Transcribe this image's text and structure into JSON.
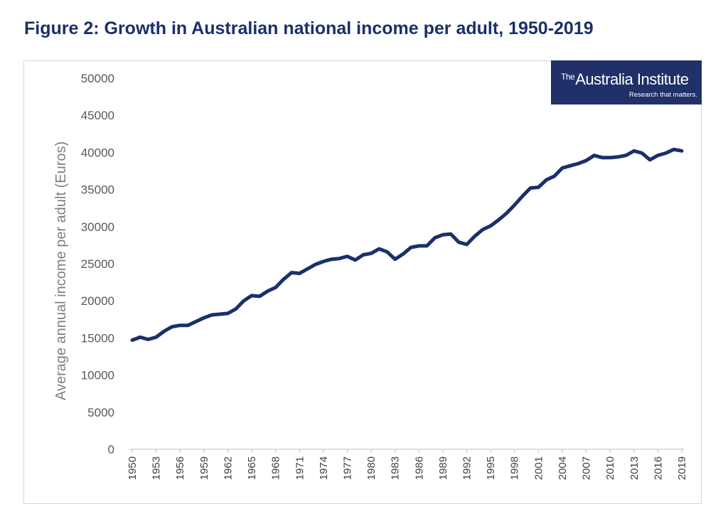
{
  "figure": {
    "title": "Figure 2: Growth in Australian national income per adult, 1950-2019"
  },
  "logo": {
    "the": "The",
    "name": "Australia Institute",
    "tagline": "Research that matters.",
    "background": "#1f3168"
  },
  "chart_data": {
    "type": "line",
    "title": "Figure 2: Growth in Australian national income per adult, 1950-2019",
    "ylabel": "Average annual income per adult (Euros)",
    "xlabel": "",
    "ylim": [
      0,
      50000
    ],
    "y_ticks": [
      0,
      5000,
      10000,
      15000,
      20000,
      25000,
      30000,
      35000,
      40000,
      45000,
      50000
    ],
    "x_tick_labels": [
      "1950",
      "1953",
      "1956",
      "1959",
      "1962",
      "1965",
      "1968",
      "1971",
      "1974",
      "1977",
      "1980",
      "1983",
      "1986",
      "1989",
      "1992",
      "1995",
      "1998",
      "2001",
      "2004",
      "2007",
      "2010",
      "2013",
      "2016",
      "2019"
    ],
    "grid": false,
    "line_color": "#1b2f6b",
    "series": [
      {
        "x": [
          1950,
          1951,
          1952,
          1953,
          1954,
          1955,
          1956,
          1957,
          1958,
          1959,
          1960,
          1961,
          1962,
          1963,
          1964,
          1965,
          1966,
          1967,
          1968,
          1969,
          1970,
          1971,
          1972,
          1973,
          1974,
          1975,
          1976,
          1977,
          1978,
          1979,
          1980,
          1981,
          1982,
          1983,
          1984,
          1985,
          1986,
          1987,
          1988,
          1989,
          1990,
          1991,
          1992,
          1993,
          1994,
          1995,
          1996,
          1997,
          1998,
          1999,
          2000,
          2001,
          2002,
          2003,
          2004,
          2005,
          2006,
          2007,
          2008,
          2009,
          2010,
          2011,
          2012,
          2013,
          2014,
          2015,
          2016,
          2017,
          2018,
          2019
        ],
        "values": [
          14700,
          15100,
          14800,
          15100,
          15900,
          16500,
          16700,
          16700,
          17200,
          17700,
          18100,
          18200,
          18300,
          18900,
          20000,
          20700,
          20600,
          21300,
          21800,
          22900,
          23800,
          23700,
          24300,
          24900,
          25300,
          25600,
          25700,
          26000,
          25500,
          26200,
          26400,
          27000,
          26600,
          25600,
          26300,
          27200,
          27400,
          27400,
          28500,
          28900,
          29000,
          27900,
          27600,
          28700,
          29600,
          30100,
          30900,
          31800,
          32900,
          34100,
          35200,
          35300,
          36300,
          36800,
          37900,
          38200,
          38500,
          38900,
          39600,
          39300,
          39300,
          39400,
          39600,
          40200,
          39900,
          39000,
          39600,
          39900,
          40400,
          40200
        ]
      }
    ]
  }
}
